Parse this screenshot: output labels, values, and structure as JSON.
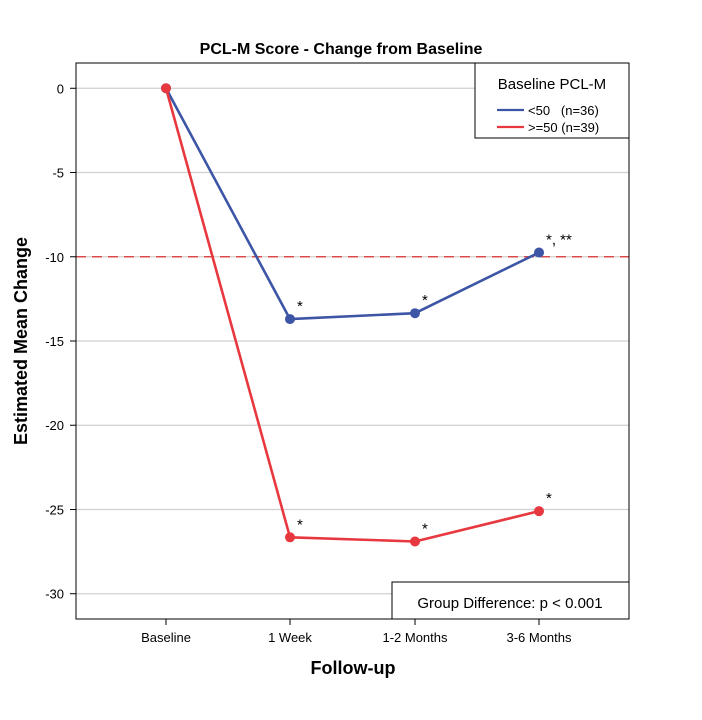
{
  "chart_data": {
    "type": "line",
    "title": "PCL-M Score - Change from Baseline",
    "xlabel": "Follow-up",
    "ylabel": "Estimated Mean Change",
    "categories": [
      "Baseline",
      "1 Week",
      "1-2 Months",
      "3-6 Months"
    ],
    "ylim": [
      -31.5,
      1.5
    ],
    "yticks": [
      0,
      -5,
      -10,
      -15,
      -20,
      -25,
      -30
    ],
    "ytick_labels": [
      "0",
      "-5",
      "-10",
      "-15",
      "-20",
      "-25",
      "-30"
    ],
    "grid": "horizontal",
    "reference_line": {
      "y": -10,
      "color": "#d94b4b",
      "style": "dashed"
    },
    "legend": {
      "title": "Baseline PCL-M",
      "placement": "top-right"
    },
    "series": [
      {
        "name": "<50   (n=36)",
        "color": "#3d55a5",
        "values": [
          0,
          -13.7,
          -13.35,
          -9.75
        ],
        "annotations": [
          "",
          "*",
          "*",
          "*, **"
        ]
      },
      {
        "name": ">=50 (n=39)",
        "color": "#e8383f",
        "values": [
          0,
          -26.65,
          -26.9,
          -25.1
        ],
        "annotations": [
          "",
          "*",
          "*",
          "*"
        ]
      }
    ],
    "note": "Group Difference: p < 0.001"
  }
}
